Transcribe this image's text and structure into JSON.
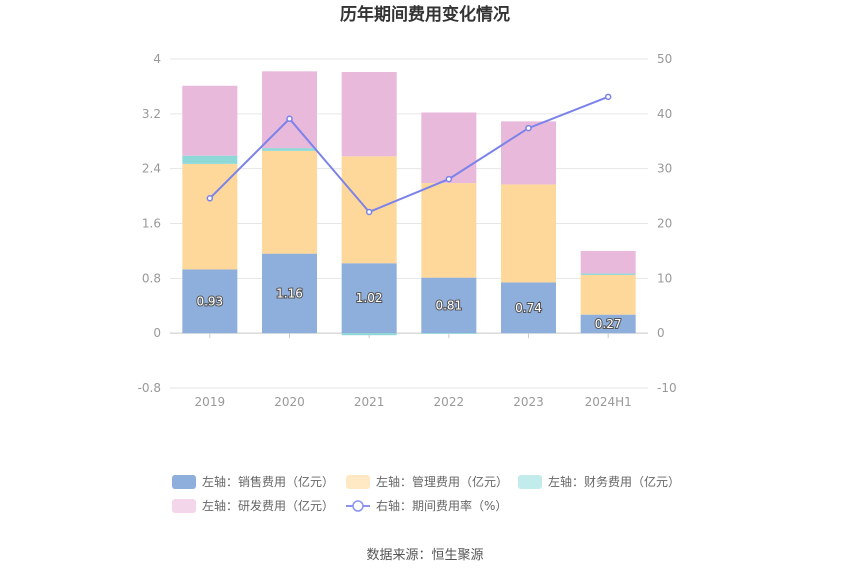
{
  "chart_data": {
    "type": "bar",
    "title": "历年期间费用变化情况",
    "categories": [
      "2019",
      "2020",
      "2021",
      "2022",
      "2023",
      "2024H1"
    ],
    "series": [
      {
        "name": "左轴：销售费用（亿元）",
        "axis": "left",
        "kind": "bar",
        "color": "#8eaedb",
        "values": [
          0.93,
          1.16,
          1.02,
          0.81,
          0.74,
          0.27
        ],
        "labels": [
          "0.93",
          "1.16",
          "1.02",
          "0.81",
          "0.74",
          "0.27"
        ]
      },
      {
        "name": "左轴：管理费用（亿元）",
        "axis": "left",
        "kind": "bar",
        "color": "#fdd89a",
        "values": [
          1.54,
          1.5,
          1.56,
          1.38,
          1.43,
          0.58
        ]
      },
      {
        "name": "左轴：财务费用（亿元）",
        "axis": "left",
        "kind": "bar",
        "color": "#8ed8d8",
        "values": [
          0.12,
          0.04,
          -0.03,
          -0.01,
          0.0,
          0.02
        ]
      },
      {
        "name": "左轴：研发费用（亿元）",
        "axis": "left",
        "kind": "bar",
        "color": "#e8b9da",
        "values": [
          1.02,
          1.12,
          1.23,
          1.03,
          0.92,
          0.33
        ]
      },
      {
        "name": "右轴：期间费用率（%）",
        "axis": "right",
        "kind": "line",
        "color": "#7b83ea",
        "values": [
          24.6,
          39.1,
          22.1,
          28.1,
          37.4,
          43.1
        ]
      }
    ],
    "y_left": {
      "min": -0.8,
      "max": 4,
      "ticks": [
        "-0.8",
        "0",
        "0.8",
        "1.6",
        "2.4",
        "3.2",
        "4"
      ]
    },
    "y_right": {
      "min": -10,
      "max": 50,
      "ticks": [
        "-10",
        "0",
        "10",
        "20",
        "30",
        "40",
        "50"
      ]
    },
    "grid": true,
    "legend_position": "bottom"
  },
  "source": "数据来源：恒生聚源",
  "legend_icon_colors": {
    "sales": "#8eaedb",
    "admin": "#ffe9c5",
    "finance": "#c2ecec",
    "rd": "#f3d6ea",
    "rate": "#8b93ee"
  }
}
